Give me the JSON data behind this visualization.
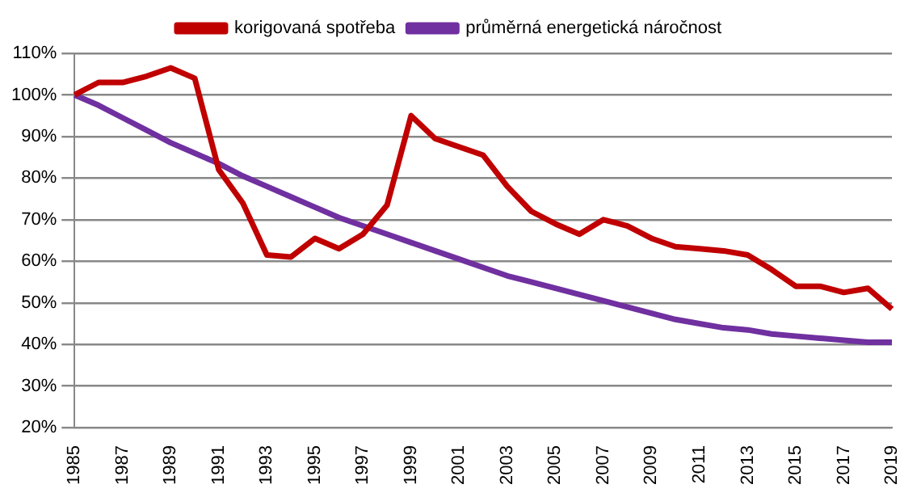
{
  "chart_data": {
    "type": "line",
    "categories": [
      "1985",
      null,
      "1987",
      null,
      "1989",
      null,
      "1991",
      null,
      "1993",
      null,
      "1995",
      null,
      "1997",
      null,
      "1999",
      null,
      "2001",
      null,
      "2003",
      null,
      "2005",
      null,
      "2007",
      null,
      "2009",
      null,
      "2011",
      null,
      "2013",
      null,
      "2015",
      null,
      "2017",
      null,
      "2019"
    ],
    "series": [
      {
        "name": "korigovaná spotřeba",
        "color": "#c00000",
        "values": [
          100,
          103,
          103,
          104.5,
          106.5,
          104,
          82,
          74,
          61.5,
          61,
          65.5,
          63,
          66.5,
          73.5,
          95,
          89.5,
          87.5,
          85.5,
          78,
          72,
          69,
          66.5,
          70,
          68.5,
          65.5,
          63.5,
          63,
          62.5,
          61.5,
          58,
          54,
          54,
          52.5,
          53.5,
          48.5
        ]
      },
      {
        "name": "průměrná energetická náročnost",
        "color": "#7030a0",
        "values": [
          100,
          97.5,
          94.5,
          91.5,
          88.5,
          86,
          83.5,
          80.5,
          78,
          75.5,
          73,
          70.5,
          68.5,
          66.5,
          64.5,
          62.5,
          60.5,
          58.5,
          56.5,
          55,
          53.5,
          52,
          50.5,
          49,
          47.5,
          46,
          45,
          44,
          43.5,
          42.5,
          42,
          41.5,
          41,
          40.5,
          40.5
        ]
      }
    ],
    "ylim": [
      20,
      110
    ],
    "yticks": [
      {
        "value": 20,
        "label": "20%"
      },
      {
        "value": 30,
        "label": "30%"
      },
      {
        "value": 40,
        "label": "40%"
      },
      {
        "value": 50,
        "label": "50%"
      },
      {
        "value": 60,
        "label": "60%"
      },
      {
        "value": 70,
        "label": "70%"
      },
      {
        "value": 80,
        "label": "80%"
      },
      {
        "value": 90,
        "label": "90%"
      },
      {
        "value": 100,
        "label": "100%"
      },
      {
        "value": 110,
        "label": "110%"
      }
    ],
    "grid": "y",
    "legend": "top",
    "marker": "none",
    "line_style": "solid"
  }
}
